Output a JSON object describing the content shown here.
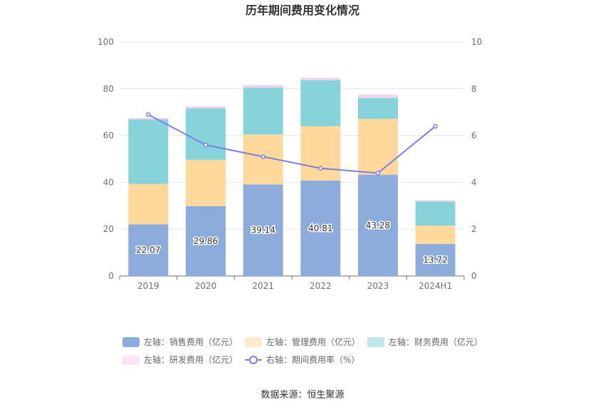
{
  "chart_data": {
    "type": "bar",
    "title": "历年期间费用变化情况",
    "categories": [
      "2019",
      "2020",
      "2021",
      "2022",
      "2023",
      "2024H1"
    ],
    "stacked": true,
    "series": [
      {
        "name": "左轴：销售费用（亿元）",
        "axis": "left",
        "color": "#8eacdb",
        "values": [
          22.07,
          29.86,
          39.14,
          40.81,
          43.28,
          13.72
        ],
        "show_labels": true
      },
      {
        "name": "左轴：管理费用（亿元）",
        "axis": "left",
        "color": "#ffd99c",
        "values": [
          17.3,
          19.8,
          21.3,
          23.2,
          23.8,
          7.8
        ],
        "show_labels": false
      },
      {
        "name": "左轴：财务费用（亿元）",
        "axis": "left",
        "color": "#86d4da",
        "values": [
          27.5,
          22.0,
          20.0,
          19.6,
          9.0,
          10.3
        ],
        "show_labels": false
      },
      {
        "name": "左轴：研发费用（亿元）",
        "axis": "left",
        "color": "#f0d2ec",
        "values": [
          0.6,
          0.8,
          1.1,
          1.1,
          1.4,
          0.6
        ],
        "show_labels": false
      }
    ],
    "line_series": {
      "name": "右轴：期间费用率（%）",
      "axis": "right",
      "color": "#7b7fe6",
      "values": [
        6.9,
        5.6,
        5.1,
        4.6,
        4.4,
        6.4
      ]
    },
    "left_axis": {
      "min": 0,
      "max": 100,
      "ticks": [
        0,
        20,
        40,
        60,
        80,
        100
      ]
    },
    "right_axis": {
      "min": 0,
      "max": 10,
      "ticks": [
        0,
        2,
        4,
        6,
        8,
        10
      ]
    },
    "legend_position": "bottom",
    "grid": true
  },
  "source": "数据来源：恒生聚源"
}
